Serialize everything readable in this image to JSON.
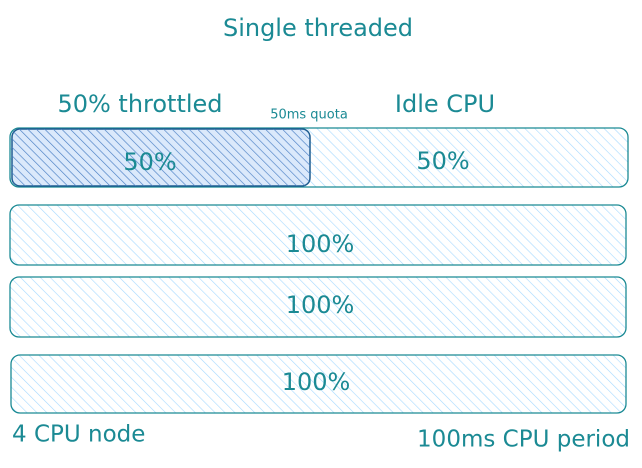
{
  "title": "Single threaded",
  "rows": [
    {
      "segments": [
        {
          "label": "50%",
          "caption": "50% throttled"
        },
        {
          "label": "50%",
          "caption": "Idle CPU"
        }
      ],
      "marker": "50ms quota"
    },
    {
      "segments": [
        {
          "label": "100%"
        }
      ]
    },
    {
      "segments": [
        {
          "label": "100%"
        }
      ]
    },
    {
      "segments": [
        {
          "label": "100%"
        }
      ]
    }
  ],
  "footer": {
    "left": "4 CPU node",
    "right": "100ms CPU period"
  }
}
